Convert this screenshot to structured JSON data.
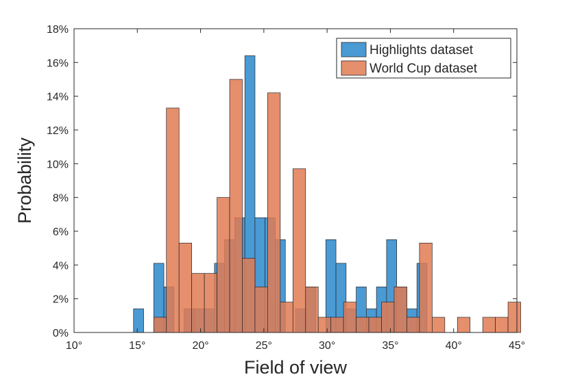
{
  "chart_data": {
    "type": "histogram",
    "xlabel": "Field of view",
    "ylabel": "Probability",
    "xlim": [
      10,
      45
    ],
    "ylim": [
      0,
      18
    ],
    "xticks": [
      10,
      15,
      20,
      25,
      30,
      35,
      40,
      45
    ],
    "xtick_labels": [
      "10°",
      "15°",
      "20°",
      "25°",
      "30°",
      "35°",
      "40°",
      "45°"
    ],
    "yticks": [
      0,
      2,
      4,
      6,
      8,
      10,
      12,
      14,
      16,
      18
    ],
    "ytick_labels": [
      "0%",
      "2%",
      "4%",
      "6%",
      "8%",
      "10%",
      "12%",
      "14%",
      "16%",
      "18%"
    ],
    "grid": false,
    "legend_position": "top-right",
    "series": [
      {
        "name": "Highlights dataset",
        "color": "#4a9ad4",
        "bin_width": 0.8,
        "bins": [
          {
            "x0": 14.7,
            "value": 1.4
          },
          {
            "x0": 16.3,
            "value": 4.1
          },
          {
            "x0": 17.1,
            "value": 2.7
          },
          {
            "x0": 18.7,
            "value": 1.4
          },
          {
            "x0": 19.5,
            "value": 1.4
          },
          {
            "x0": 20.3,
            "value": 1.4
          },
          {
            "x0": 21.1,
            "value": 4.1
          },
          {
            "x0": 21.9,
            "value": 5.5
          },
          {
            "x0": 22.7,
            "value": 6.8
          },
          {
            "x0": 23.5,
            "value": 16.4
          },
          {
            "x0": 24.3,
            "value": 6.8
          },
          {
            "x0": 25.1,
            "value": 6.8
          },
          {
            "x0": 25.9,
            "value": 5.5
          },
          {
            "x0": 27.5,
            "value": 1.4
          },
          {
            "x0": 28.3,
            "value": 2.7
          },
          {
            "x0": 29.9,
            "value": 5.5
          },
          {
            "x0": 30.7,
            "value": 4.1
          },
          {
            "x0": 31.5,
            "value": 1.4
          },
          {
            "x0": 32.3,
            "value": 2.7
          },
          {
            "x0": 33.1,
            "value": 1.4
          },
          {
            "x0": 33.9,
            "value": 2.7
          },
          {
            "x0": 34.7,
            "value": 5.5
          },
          {
            "x0": 35.5,
            "value": 2.7
          },
          {
            "x0": 36.3,
            "value": 1.4
          },
          {
            "x0": 37.1,
            "value": 4.1
          }
        ]
      },
      {
        "name": "World Cup dataset",
        "color": "#e07b54",
        "bin_width": 1.0,
        "bins": [
          {
            "x0": 16.3,
            "value": 0.9
          },
          {
            "x0": 17.3,
            "value": 13.3
          },
          {
            "x0": 18.3,
            "value": 5.3
          },
          {
            "x0": 19.3,
            "value": 3.5
          },
          {
            "x0": 20.3,
            "value": 3.5
          },
          {
            "x0": 21.3,
            "value": 8.0
          },
          {
            "x0": 22.3,
            "value": 15.0
          },
          {
            "x0": 23.3,
            "value": 4.4
          },
          {
            "x0": 24.3,
            "value": 2.7
          },
          {
            "x0": 25.3,
            "value": 14.2
          },
          {
            "x0": 26.3,
            "value": 1.8
          },
          {
            "x0": 27.3,
            "value": 9.7
          },
          {
            "x0": 28.3,
            "value": 2.7
          },
          {
            "x0": 29.3,
            "value": 0.9
          },
          {
            "x0": 30.3,
            "value": 0.9
          },
          {
            "x0": 31.3,
            "value": 1.8
          },
          {
            "x0": 32.3,
            "value": 0.9
          },
          {
            "x0": 33.3,
            "value": 0.9
          },
          {
            "x0": 34.3,
            "value": 1.8
          },
          {
            "x0": 35.3,
            "value": 2.7
          },
          {
            "x0": 36.3,
            "value": 0.9
          },
          {
            "x0": 37.3,
            "value": 5.3
          },
          {
            "x0": 38.3,
            "value": 0.9
          },
          {
            "x0": 40.3,
            "value": 0.9
          },
          {
            "x0": 42.3,
            "value": 0.9
          },
          {
            "x0": 43.3,
            "value": 0.9
          },
          {
            "x0": 44.3,
            "value": 1.8
          }
        ]
      }
    ]
  }
}
